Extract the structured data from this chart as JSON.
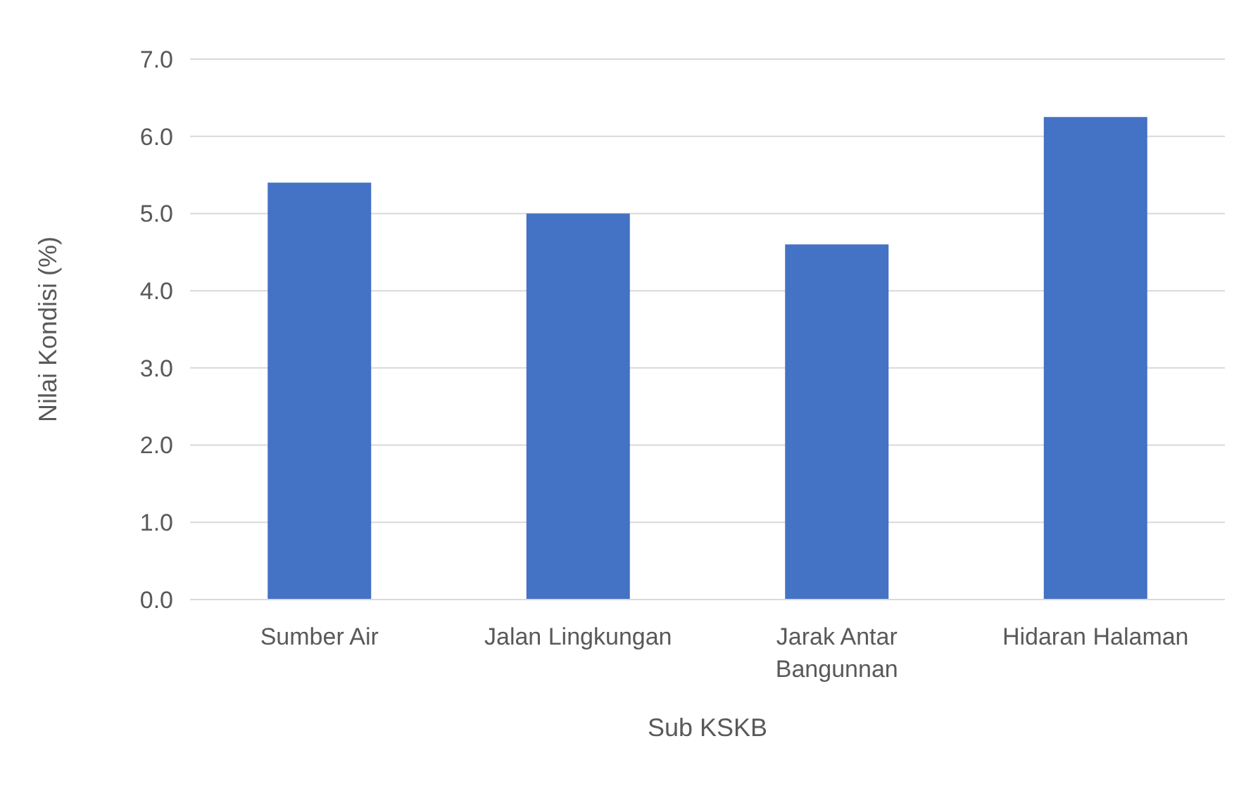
{
  "chart_data": {
    "type": "bar",
    "xlabel": "Sub KSKB",
    "ylabel": "Nilai Kondisi (%)",
    "categories": [
      "Sumber Air",
      "Jalan Lingkungan",
      "Jarak Antar Bangunnan",
      "Hidaran Halaman"
    ],
    "values": [
      5.4,
      5.0,
      4.6,
      6.25
    ],
    "color": "#4472c4",
    "ylim": [
      0,
      7
    ],
    "yticks": [
      {
        "value": 0,
        "label": "0.0"
      },
      {
        "value": 1,
        "label": "1.0"
      },
      {
        "value": 2,
        "label": "2.0"
      },
      {
        "value": 3,
        "label": "3.0"
      },
      {
        "value": 4,
        "label": "4.0"
      },
      {
        "value": 5,
        "label": "5.0"
      },
      {
        "value": 6,
        "label": "6.0"
      },
      {
        "value": 7,
        "label": "7.0"
      }
    ],
    "grid": "y"
  }
}
